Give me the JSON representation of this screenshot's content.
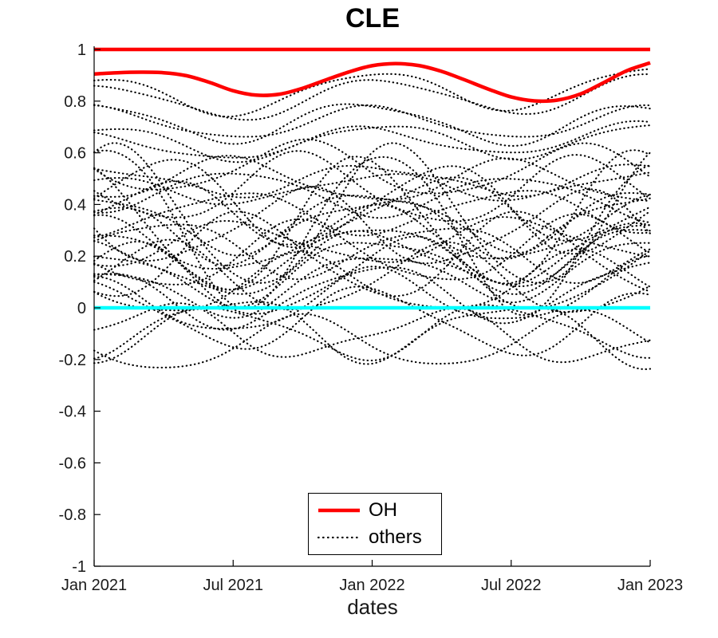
{
  "figure": {
    "background": "#ffffff"
  },
  "chart_data": {
    "type": "line",
    "title": "CLE",
    "xlabel": "dates",
    "ylim": [
      -1,
      1
    ],
    "x_span_months": 24,
    "grid": false,
    "x_ticks": [
      {
        "t": 0,
        "label": "Jan 2021"
      },
      {
        "t": 6,
        "label": "Jul 2021"
      },
      {
        "t": 12,
        "label": "Jan 2022"
      },
      {
        "t": 18,
        "label": "Jul 2022"
      },
      {
        "t": 24,
        "label": "Jan 2023"
      }
    ],
    "y_ticks": [
      {
        "v": 1,
        "label": "1"
      },
      {
        "v": 0.8,
        "label": "0.8"
      },
      {
        "v": 0.6,
        "label": "0.6"
      },
      {
        "v": 0.4,
        "label": "0.4"
      },
      {
        "v": 0.2,
        "label": "0.2"
      },
      {
        "v": 0,
        "label": "0"
      },
      {
        "v": -0.2,
        "label": "-0.2"
      },
      {
        "v": -0.4,
        "label": "-0.4"
      },
      {
        "v": -0.6,
        "label": "-0.6"
      },
      {
        "v": -0.8,
        "label": "-0.8"
      },
      {
        "v": -1,
        "label": "-1"
      }
    ],
    "colors": {
      "oh": "#ff0000",
      "others": "#000000",
      "zero_line": "#00ffff",
      "upper_line": "#ff0000",
      "text": "#1a1a1a",
      "axis": "#000000"
    },
    "const_lines": [
      {
        "name": "upper-bound-line",
        "y": 1,
        "color": "#ff0000",
        "width": 4.5,
        "style": "solid"
      },
      {
        "name": "zero-line",
        "y": 0,
        "color": "#00ffff",
        "width": 4.5,
        "style": "solid"
      }
    ],
    "series_oh": {
      "name": "OH",
      "color": "#ff0000",
      "style": "solid",
      "width": 4.5,
      "x_months": [
        0,
        1,
        2,
        3,
        4,
        5,
        6,
        7,
        8,
        9,
        10,
        11,
        12,
        13,
        14,
        15,
        16,
        17,
        18,
        19,
        20,
        21,
        22,
        23,
        24
      ],
      "values": [
        0.905,
        0.91,
        0.912,
        0.91,
        0.898,
        0.872,
        0.84,
        0.823,
        0.827,
        0.85,
        0.882,
        0.913,
        0.937,
        0.945,
        0.938,
        0.915,
        0.882,
        0.847,
        0.816,
        0.801,
        0.804,
        0.828,
        0.872,
        0.918,
        0.948
      ]
    },
    "others": {
      "name": "others",
      "color": "#000000",
      "style": "dotted",
      "width": 2.1,
      "model": "y(t) = c + d*t/24 + a*sin(2*pi*(t-p)/12) + a2*sin(2*pi*(t-q)/6), t in months 0..24",
      "param_order": [
        "c",
        "a",
        "p",
        "a2",
        "q",
        "d"
      ],
      "series": [
        [
          0.815,
          0.075,
          9.0,
          0.012,
          1.0,
          0.045
        ],
        [
          0.79,
          0.07,
          9.3,
          0.01,
          3.0,
          0.045
        ],
        [
          0.725,
          0.075,
          8.7,
          0.015,
          2.0,
          -0.015
        ],
        [
          0.715,
          0.06,
          9.0,
          0.01,
          4.0,
          0.0
        ],
        [
          0.635,
          0.065,
          9.4,
          0.012,
          1.5,
          0.02
        ],
        [
          0.62,
          0.055,
          8.6,
          0.01,
          3.5,
          0.04
        ],
        [
          0.49,
          0.055,
          9.0,
          0.015,
          2.5,
          0.01
        ],
        [
          0.45,
          0.05,
          9.2,
          0.012,
          0.5,
          0.03
        ],
        [
          0.47,
          0.13,
          6.0,
          0.02,
          1.0,
          -0.03
        ],
        [
          0.33,
          0.11,
          9.0,
          0.025,
          2.0,
          0.02
        ],
        [
          0.5,
          0.08,
          3.0,
          0.015,
          4.0,
          -0.02
        ],
        [
          0.29,
          0.11,
          9.0,
          0.03,
          1.0,
          0.05
        ],
        [
          0.46,
          0.08,
          3.2,
          0.012,
          2.0,
          -0.04
        ],
        [
          0.36,
          0.12,
          0.0,
          0.02,
          3.0,
          0.03
        ],
        [
          0.23,
          0.11,
          9.0,
          0.02,
          5.0,
          0.08
        ],
        [
          0.32,
          0.14,
          6.0,
          0.025,
          2.5,
          -0.02
        ],
        [
          0.19,
          0.11,
          9.0,
          0.02,
          1.5,
          0.04
        ],
        [
          0.36,
          0.08,
          3.0,
          0.015,
          0.5,
          0.02
        ],
        [
          0.15,
          0.11,
          8.8,
          0.02,
          3.0,
          0.06
        ],
        [
          0.24,
          0.1,
          0.0,
          0.02,
          4.0,
          -0.03
        ],
        [
          0.11,
          0.11,
          9.0,
          0.025,
          2.0,
          0.1
        ],
        [
          0.19,
          0.12,
          6.0,
          0.02,
          1.0,
          0.04
        ],
        [
          0.24,
          0.08,
          3.1,
          0.015,
          3.5,
          0.03
        ],
        [
          0.03,
          0.11,
          9.0,
          0.02,
          0.8,
          0.05
        ],
        [
          0.12,
          0.13,
          0.0,
          0.02,
          2.2,
          -0.02
        ],
        [
          -0.01,
          0.11,
          9.0,
          0.02,
          4.5,
          0.08
        ],
        [
          0.08,
          0.11,
          6.0,
          0.02,
          1.2,
          0.02
        ],
        [
          0.33,
          0.3,
          9.5,
          0.02,
          2.0,
          -0.05
        ],
        [
          0.35,
          0.27,
          10.0,
          0.02,
          5.0,
          0.0
        ],
        [
          0.3,
          0.25,
          8.5,
          0.02,
          3.0,
          0.05
        ],
        [
          -0.06,
          0.11,
          3.0,
          0.03,
          1.0,
          -0.04
        ],
        [
          -0.1,
          0.1,
          2.5,
          0.02,
          2.0,
          0.02
        ],
        [
          -0.02,
          0.12,
          9.0,
          0.02,
          3.0,
          -0.05
        ],
        [
          -0.15,
          0.1,
          6.0,
          0.015,
          1.5,
          0.03
        ],
        [
          -0.08,
          0.09,
          0.0,
          0.025,
          2.8,
          -0.04
        ],
        [
          0.55,
          0.1,
          6.0,
          0.015,
          2.0,
          -0.03
        ],
        [
          0.1,
          0.14,
          10.5,
          0.02,
          1.0,
          0.04
        ],
        [
          0.42,
          0.16,
          0.0,
          0.02,
          3.2,
          -0.05
        ],
        [
          0.2,
          0.16,
          3.5,
          0.02,
          4.0,
          0.0
        ],
        [
          0.05,
          0.1,
          9.0,
          0.02,
          1.8,
          0.12
        ]
      ]
    },
    "legend": {
      "position": "south-center",
      "entries": [
        {
          "label": "OH",
          "color": "#ff0000",
          "style": "solid"
        },
        {
          "label": "others",
          "color": "#000000",
          "style": "dotted"
        }
      ]
    }
  }
}
